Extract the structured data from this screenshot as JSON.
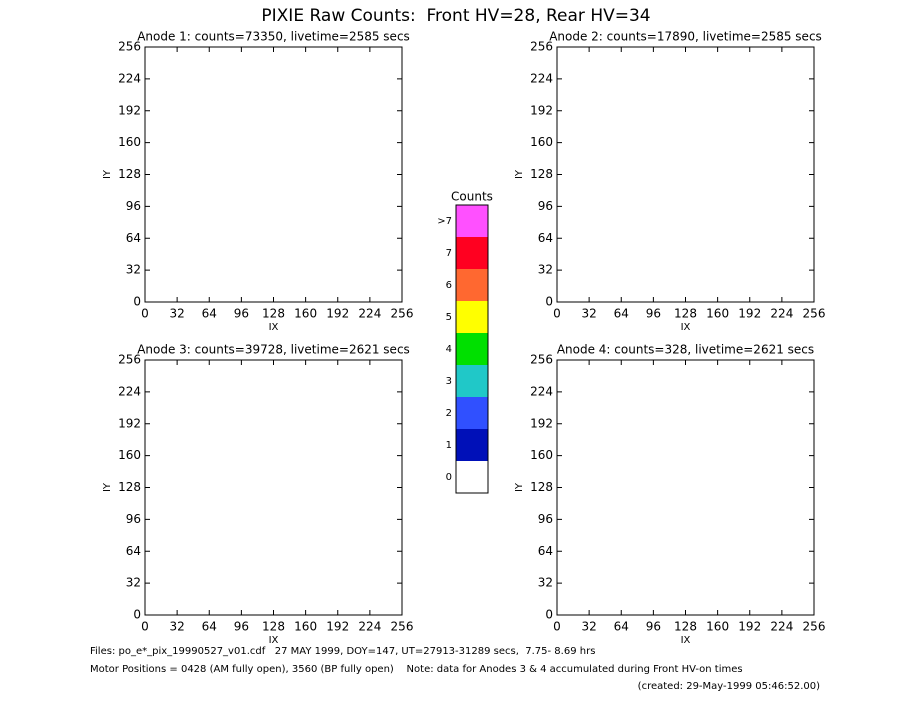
{
  "title": "PIXIE Raw Counts:  Front HV=28, Rear HV=34",
  "chart_data": [
    {
      "type": "heatmap",
      "title": "Anode 1: counts=73350, livetime=2585 secs",
      "xlabel": "IX",
      "ylabel": "IY",
      "xlim": [
        0,
        256
      ],
      "ylim": [
        0,
        256
      ],
      "xticks": [
        0,
        32,
        64,
        96,
        128,
        160,
        192,
        224,
        256
      ],
      "yticks": [
        0,
        32,
        64,
        96,
        128,
        160,
        192,
        224,
        256
      ]
    },
    {
      "type": "heatmap",
      "title": "Anode 2: counts=17890, livetime=2585 secs",
      "xlabel": "IX",
      "ylabel": "IY",
      "xlim": [
        0,
        256
      ],
      "ylim": [
        0,
        256
      ],
      "xticks": [
        0,
        32,
        64,
        96,
        128,
        160,
        192,
        224,
        256
      ],
      "yticks": [
        0,
        32,
        64,
        96,
        128,
        160,
        192,
        224,
        256
      ]
    },
    {
      "type": "heatmap",
      "title": "Anode 3: counts=39728, livetime=2621 secs",
      "xlabel": "IX",
      "ylabel": "IY",
      "xlim": [
        0,
        256
      ],
      "ylim": [
        0,
        256
      ],
      "xticks": [
        0,
        32,
        64,
        96,
        128,
        160,
        192,
        224,
        256
      ],
      "yticks": [
        0,
        32,
        64,
        96,
        128,
        160,
        192,
        224,
        256
      ]
    },
    {
      "type": "heatmap",
      "title": "Anode 4: counts=328, livetime=2621 secs",
      "xlabel": "IX",
      "ylabel": "IY",
      "xlim": [
        0,
        256
      ],
      "ylim": [
        0,
        256
      ],
      "xticks": [
        0,
        32,
        64,
        96,
        128,
        160,
        192,
        224,
        256
      ],
      "yticks": [
        0,
        32,
        64,
        96,
        128,
        160,
        192,
        224,
        256
      ]
    }
  ],
  "colorbar": {
    "title": "Counts",
    "labels": [
      "0",
      "1",
      "2",
      "3",
      "4",
      "5",
      "6",
      "7",
      ">7"
    ],
    "colors": [
      "#ffffff",
      "#0010b8",
      "#3050ff",
      "#20c8c8",
      "#00e000",
      "#ffff00",
      "#ff6830",
      "#ff0020",
      "#ff50ff"
    ]
  },
  "footer": [
    "Files: po_e*_pix_19990527_v01.cdf   27 MAY 1999, DOY=147, UT=27913-31289 secs,  7.75- 8.69 hrs",
    "Motor Positions = 0428 (AM fully open), 3560 (BP fully open)    Note: data for Anodes 3 & 4 accumulated during Front HV-on times",
    "(created: 29-May-1999 05:46:52.00)"
  ]
}
